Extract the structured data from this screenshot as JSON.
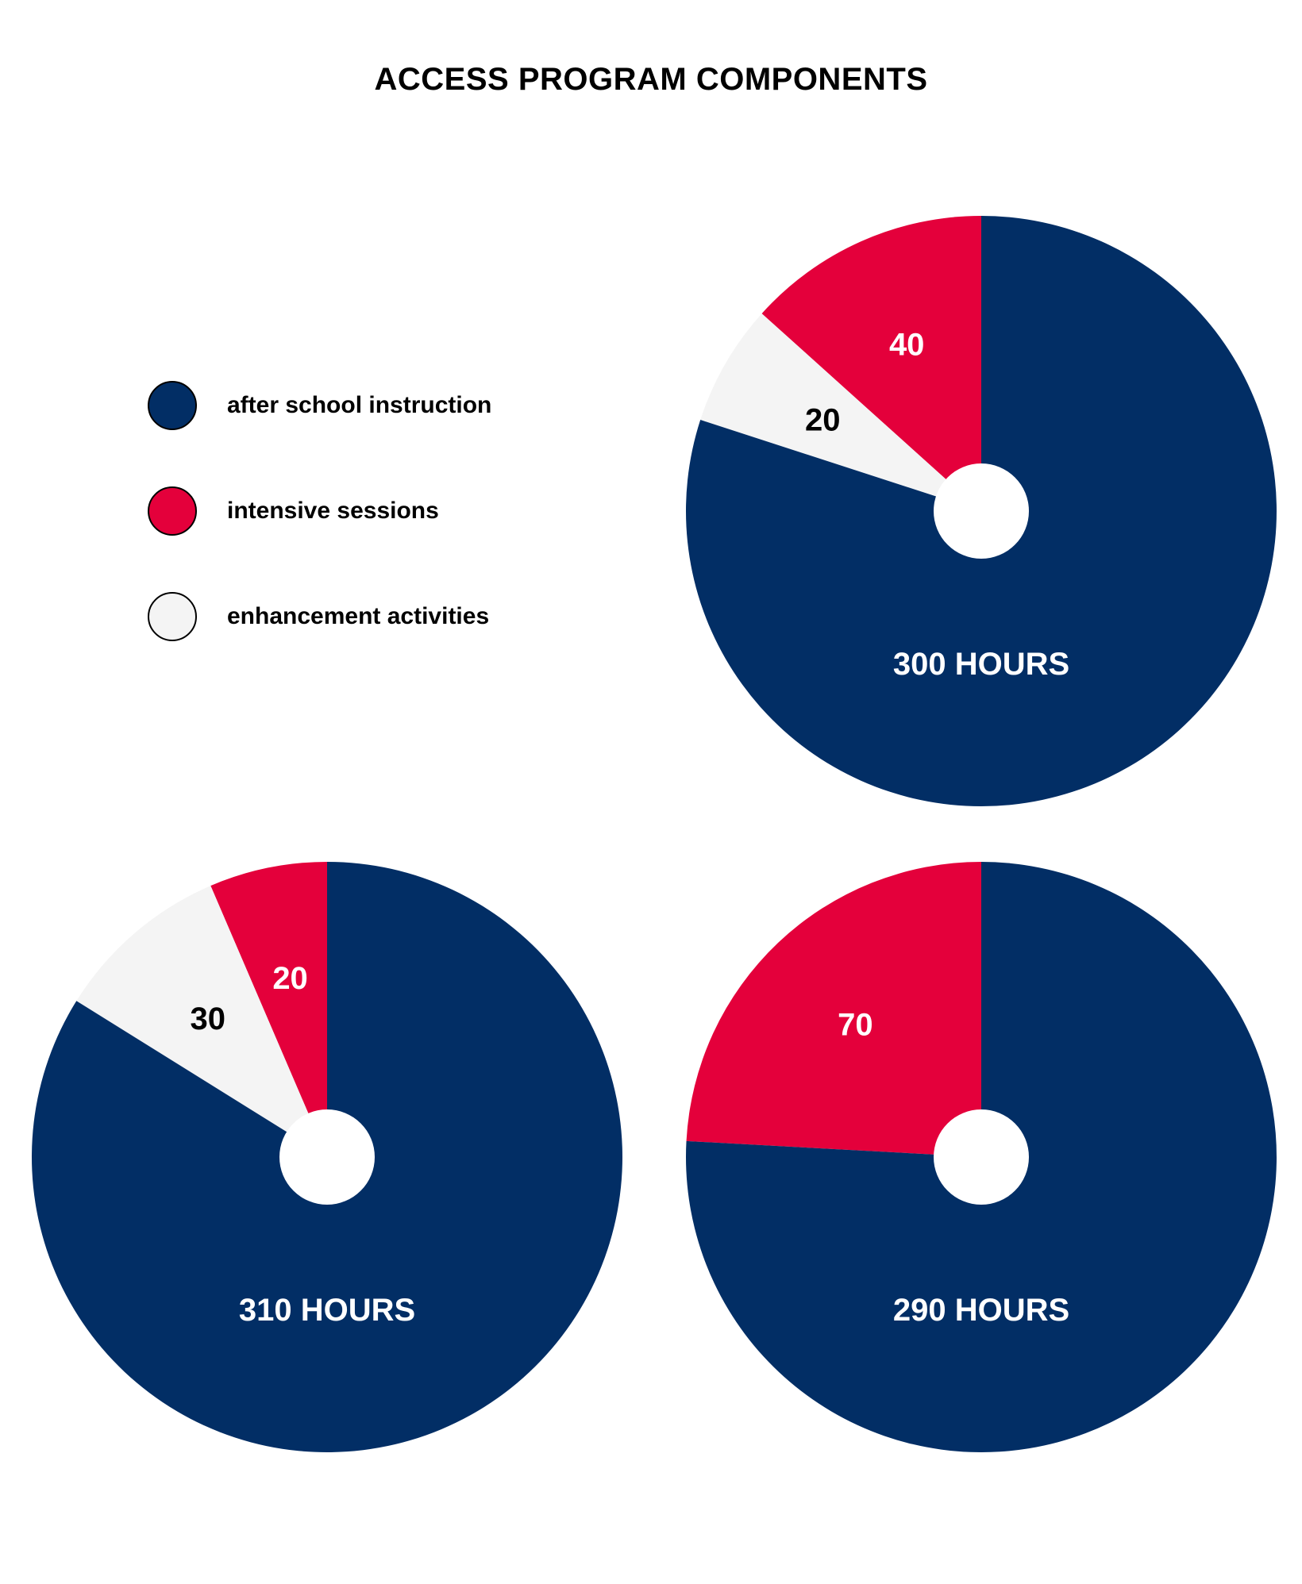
{
  "title": "ACCESS PROGRAM COMPONENTS",
  "legend": [
    {
      "label": "after school instruction",
      "color": "#022e65"
    },
    {
      "label": "intensive sessions",
      "color": "#e4003b"
    },
    {
      "label": "enhancement activities",
      "color": "#f4f4f4"
    }
  ],
  "chart_data": [
    {
      "type": "pie",
      "label": "300 HOURS",
      "total": 300,
      "series": [
        {
          "name": "after school instruction",
          "value": 240
        },
        {
          "name": "intensive sessions",
          "value": 40
        },
        {
          "name": "enhancement activities",
          "value": 20
        }
      ],
      "legend_placement": "left"
    },
    {
      "type": "pie",
      "label": "310 HOURS",
      "total": 310,
      "series": [
        {
          "name": "after school instruction",
          "value": 260
        },
        {
          "name": "intensive sessions",
          "value": 20
        },
        {
          "name": "enhancement activities",
          "value": 30
        }
      ]
    },
    {
      "type": "pie",
      "label": "290 HOURS",
      "total": 290,
      "series": [
        {
          "name": "after school instruction",
          "value": 220
        },
        {
          "name": "intensive sessions",
          "value": 70
        }
      ]
    }
  ]
}
